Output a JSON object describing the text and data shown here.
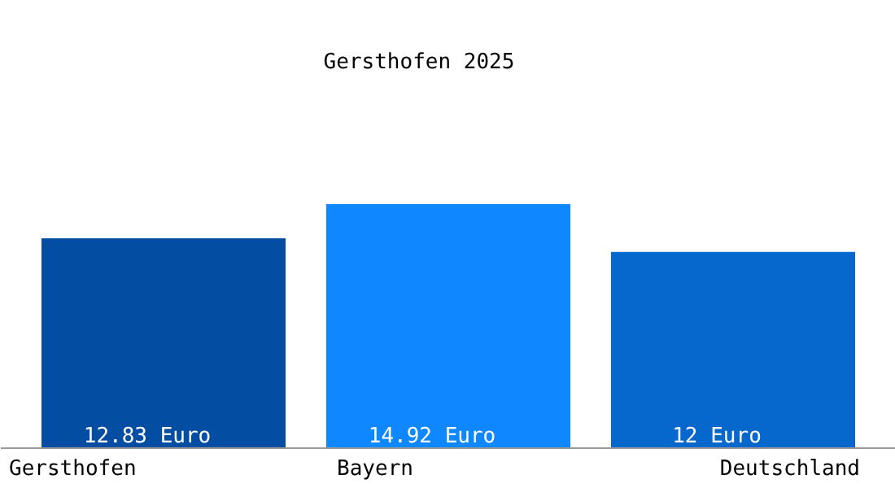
{
  "chart_data": {
    "type": "bar",
    "title": "Gersthofen 2025",
    "categories": [
      "Gersthofen",
      "Bayern",
      "Deutschland"
    ],
    "values": [
      12.83,
      14.92,
      12
    ],
    "colors": [
      "#034ea2",
      "#0f87ff",
      "#0667cc"
    ],
    "value_labels": [
      "12.83 Euro",
      "14.92 Euro",
      "12 Euro"
    ]
  }
}
